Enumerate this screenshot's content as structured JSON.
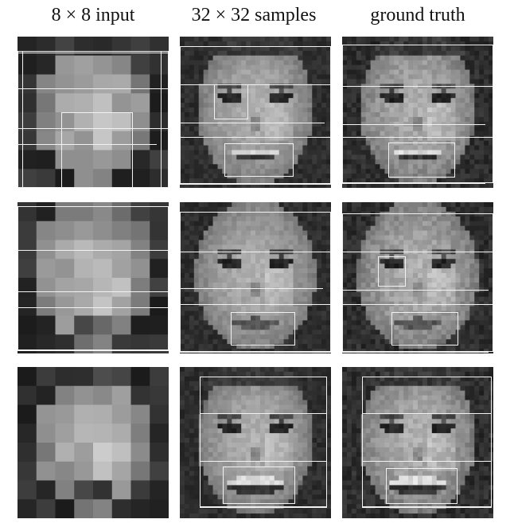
{
  "headers": {
    "input": "8 × 8 input",
    "samples": "32 × 32 samples",
    "truth": "ground truth"
  },
  "rows": [
    {
      "subject": "woman-smiling"
    },
    {
      "subject": "man-neutral"
    },
    {
      "subject": "woman-laughing"
    }
  ],
  "colors": {
    "background": "#ffffff",
    "overlay": "#f2f2f2"
  }
}
